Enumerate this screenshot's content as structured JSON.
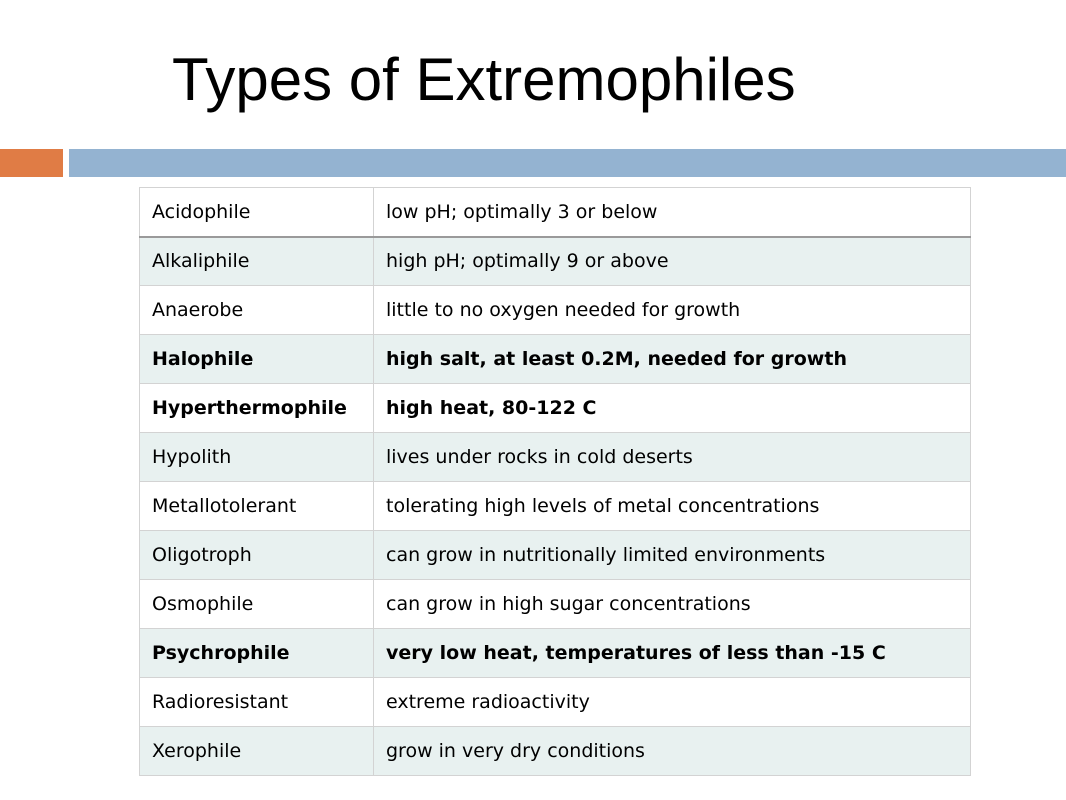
{
  "slide": {
    "title": "Types of Extremophiles"
  },
  "colors": {
    "accent_orange": "#e07c45",
    "accent_blue": "#94b3d1",
    "row_shade": "#e8f1f0"
  },
  "table": {
    "rows": [
      {
        "name": "Acidophile",
        "description": "low pH; optimally 3 or below",
        "bold": false
      },
      {
        "name": "Alkaliphile",
        "description": "high pH; optimally 9 or above",
        "bold": false
      },
      {
        "name": "Anaerobe",
        "description": "little to no oxygen needed for growth",
        "bold": false
      },
      {
        "name": "Halophile",
        "description": "high salt, at least 0.2M, needed for growth",
        "bold": true
      },
      {
        "name": "Hyperthermophile",
        "description": "high heat, 80-122 C",
        "bold": true
      },
      {
        "name": "Hypolith",
        "description": "lives under rocks in cold deserts",
        "bold": false
      },
      {
        "name": "Metallotolerant",
        "description": "tolerating high levels of metal concentrations",
        "bold": false
      },
      {
        "name": "Oligotroph",
        "description": "can grow in nutritionally limited environments",
        "bold": false
      },
      {
        "name": "Osmophile",
        "description": "can grow in high sugar concentrations",
        "bold": false
      },
      {
        "name": "Psychrophile",
        "description": "very low heat, temperatures of less than -15 C",
        "bold": true
      },
      {
        "name": "Radioresistant",
        "description": "extreme radioactivity",
        "bold": false
      },
      {
        "name": "Xerophile",
        "description": "grow in very dry conditions",
        "bold": false
      }
    ]
  }
}
